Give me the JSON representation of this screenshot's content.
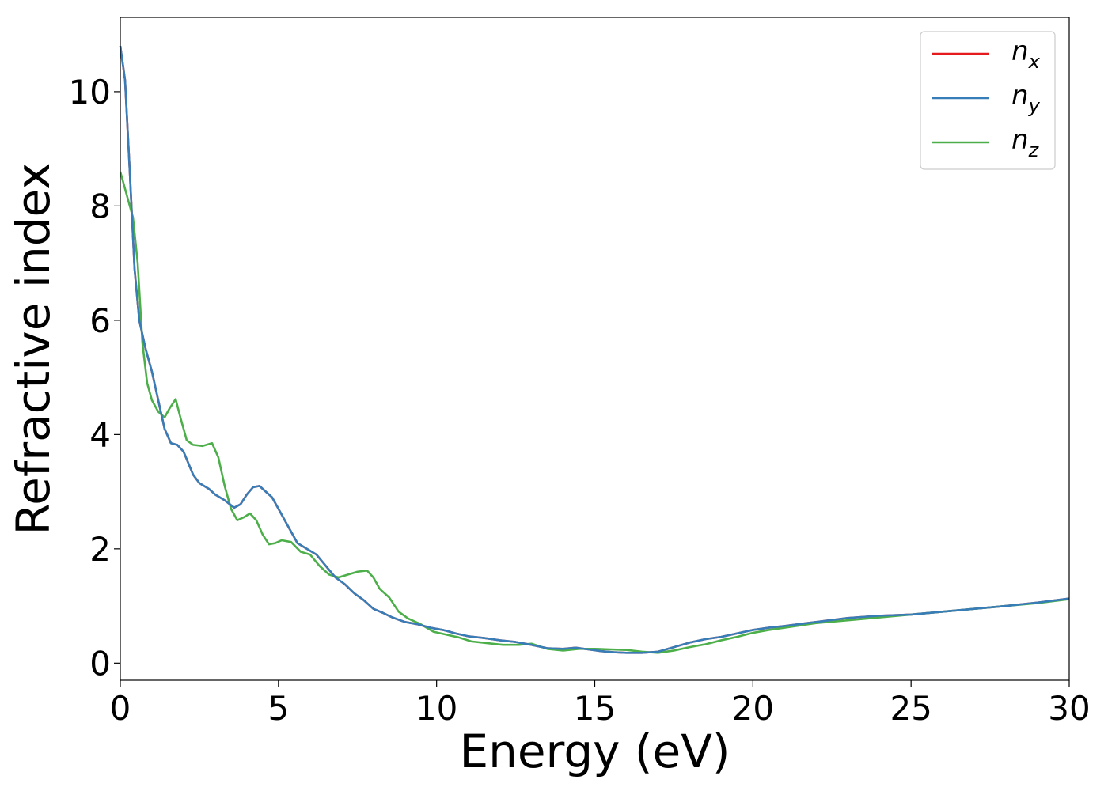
{
  "chart_data": {
    "type": "line",
    "title": "",
    "xlabel": "Energy (eV)",
    "ylabel": "Refractive index",
    "xlim": [
      0,
      30
    ],
    "ylim": [
      -0.3,
      11.3
    ],
    "xticks": [
      0,
      5,
      10,
      15,
      20,
      25,
      30
    ],
    "yticks": [
      0,
      2,
      4,
      6,
      8,
      10
    ],
    "grid": false,
    "legend_position": "top-right",
    "series": [
      {
        "name": "n",
        "subscript": "x",
        "color": "#e41a1c",
        "x": [
          0,
          0.15,
          0.3,
          0.45,
          0.6,
          0.8,
          1.0,
          1.2,
          1.4,
          1.6,
          1.8,
          2.0,
          2.3,
          2.5,
          2.8,
          3.0,
          3.3,
          3.6,
          3.8,
          4.0,
          4.2,
          4.4,
          4.6,
          4.8,
          5.0,
          5.3,
          5.6,
          5.9,
          6.2,
          6.5,
          6.8,
          7.1,
          7.4,
          7.7,
          8.0,
          8.3,
          8.6,
          9.0,
          9.4,
          9.8,
          10.2,
          10.6,
          11.0,
          11.5,
          12.0,
          12.5,
          13.0,
          13.5,
          14.0,
          14.4,
          14.8,
          15.2,
          15.6,
          16.0,
          16.5,
          17.0,
          17.5,
          18.0,
          18.5,
          19.0,
          19.5,
          20.0,
          20.5,
          21.0,
          22.0,
          23.0,
          24.0,
          25.0,
          26.0,
          27.0,
          28.0,
          29.0,
          30.0
        ],
        "y": [
          10.8,
          10.2,
          8.6,
          6.9,
          6.0,
          5.5,
          5.1,
          4.6,
          4.1,
          3.85,
          3.82,
          3.7,
          3.3,
          3.15,
          3.05,
          2.95,
          2.85,
          2.72,
          2.78,
          2.95,
          3.08,
          3.1,
          3.0,
          2.9,
          2.7,
          2.4,
          2.1,
          2.0,
          1.9,
          1.7,
          1.5,
          1.38,
          1.22,
          1.1,
          0.95,
          0.88,
          0.8,
          0.72,
          0.68,
          0.62,
          0.58,
          0.52,
          0.47,
          0.44,
          0.4,
          0.37,
          0.32,
          0.26,
          0.25,
          0.27,
          0.24,
          0.21,
          0.19,
          0.18,
          0.18,
          0.2,
          0.28,
          0.36,
          0.42,
          0.46,
          0.52,
          0.58,
          0.62,
          0.65,
          0.72,
          0.79,
          0.83,
          0.85,
          0.9,
          0.95,
          1.0,
          1.06,
          1.13
        ]
      },
      {
        "name": "n",
        "subscript": "y",
        "color": "#377eb8",
        "x": [
          0,
          0.15,
          0.3,
          0.45,
          0.6,
          0.8,
          1.0,
          1.2,
          1.4,
          1.6,
          1.8,
          2.0,
          2.3,
          2.5,
          2.8,
          3.0,
          3.3,
          3.6,
          3.8,
          4.0,
          4.2,
          4.4,
          4.6,
          4.8,
          5.0,
          5.3,
          5.6,
          5.9,
          6.2,
          6.5,
          6.8,
          7.1,
          7.4,
          7.7,
          8.0,
          8.3,
          8.6,
          9.0,
          9.4,
          9.8,
          10.2,
          10.6,
          11.0,
          11.5,
          12.0,
          12.5,
          13.0,
          13.5,
          14.0,
          14.4,
          14.8,
          15.2,
          15.6,
          16.0,
          16.5,
          17.0,
          17.5,
          18.0,
          18.5,
          19.0,
          19.5,
          20.0,
          20.5,
          21.0,
          22.0,
          23.0,
          24.0,
          25.0,
          26.0,
          27.0,
          28.0,
          29.0,
          30.0
        ],
        "y": [
          10.8,
          10.2,
          8.6,
          6.9,
          6.0,
          5.5,
          5.1,
          4.6,
          4.1,
          3.85,
          3.82,
          3.7,
          3.3,
          3.15,
          3.05,
          2.95,
          2.85,
          2.72,
          2.78,
          2.95,
          3.08,
          3.1,
          3.0,
          2.9,
          2.7,
          2.4,
          2.1,
          2.0,
          1.9,
          1.7,
          1.5,
          1.38,
          1.22,
          1.1,
          0.95,
          0.88,
          0.8,
          0.72,
          0.68,
          0.62,
          0.58,
          0.52,
          0.47,
          0.44,
          0.4,
          0.37,
          0.32,
          0.26,
          0.25,
          0.27,
          0.24,
          0.21,
          0.19,
          0.18,
          0.18,
          0.2,
          0.28,
          0.36,
          0.42,
          0.46,
          0.52,
          0.58,
          0.62,
          0.65,
          0.72,
          0.79,
          0.83,
          0.85,
          0.9,
          0.95,
          1.0,
          1.06,
          1.13
        ]
      },
      {
        "name": "n",
        "subscript": "z",
        "color": "#4daf4a",
        "x": [
          0,
          0.2,
          0.4,
          0.55,
          0.7,
          0.85,
          1.0,
          1.2,
          1.4,
          1.55,
          1.75,
          1.9,
          2.1,
          2.3,
          2.6,
          2.9,
          3.1,
          3.3,
          3.5,
          3.7,
          3.9,
          4.1,
          4.3,
          4.5,
          4.7,
          4.9,
          5.1,
          5.4,
          5.7,
          6.0,
          6.3,
          6.6,
          6.9,
          7.2,
          7.5,
          7.8,
          8.0,
          8.2,
          8.5,
          8.8,
          9.1,
          9.5,
          9.9,
          10.3,
          10.7,
          11.1,
          11.6,
          12.1,
          12.6,
          13.0,
          13.5,
          14.0,
          14.5,
          15.0,
          15.5,
          16.0,
          16.5,
          17.0,
          17.5,
          18.0,
          18.5,
          19.0,
          19.5,
          20.0,
          20.5,
          21.0,
          22.0,
          23.0,
          24.0,
          25.0,
          26.0,
          27.0,
          28.0,
          29.0,
          30.0
        ],
        "y": [
          8.6,
          8.2,
          7.8,
          7.0,
          5.6,
          4.9,
          4.6,
          4.4,
          4.3,
          4.45,
          4.62,
          4.3,
          3.9,
          3.82,
          3.8,
          3.85,
          3.6,
          3.1,
          2.7,
          2.5,
          2.55,
          2.62,
          2.5,
          2.25,
          2.08,
          2.1,
          2.15,
          2.12,
          1.95,
          1.9,
          1.7,
          1.55,
          1.5,
          1.55,
          1.6,
          1.62,
          1.5,
          1.3,
          1.15,
          0.9,
          0.78,
          0.68,
          0.55,
          0.5,
          0.45,
          0.38,
          0.35,
          0.32,
          0.32,
          0.34,
          0.25,
          0.22,
          0.25,
          0.25,
          0.24,
          0.23,
          0.2,
          0.18,
          0.22,
          0.28,
          0.33,
          0.4,
          0.46,
          0.53,
          0.58,
          0.62,
          0.7,
          0.75,
          0.8,
          0.85,
          0.9,
          0.95,
          1.0,
          1.05,
          1.12
        ]
      }
    ]
  }
}
